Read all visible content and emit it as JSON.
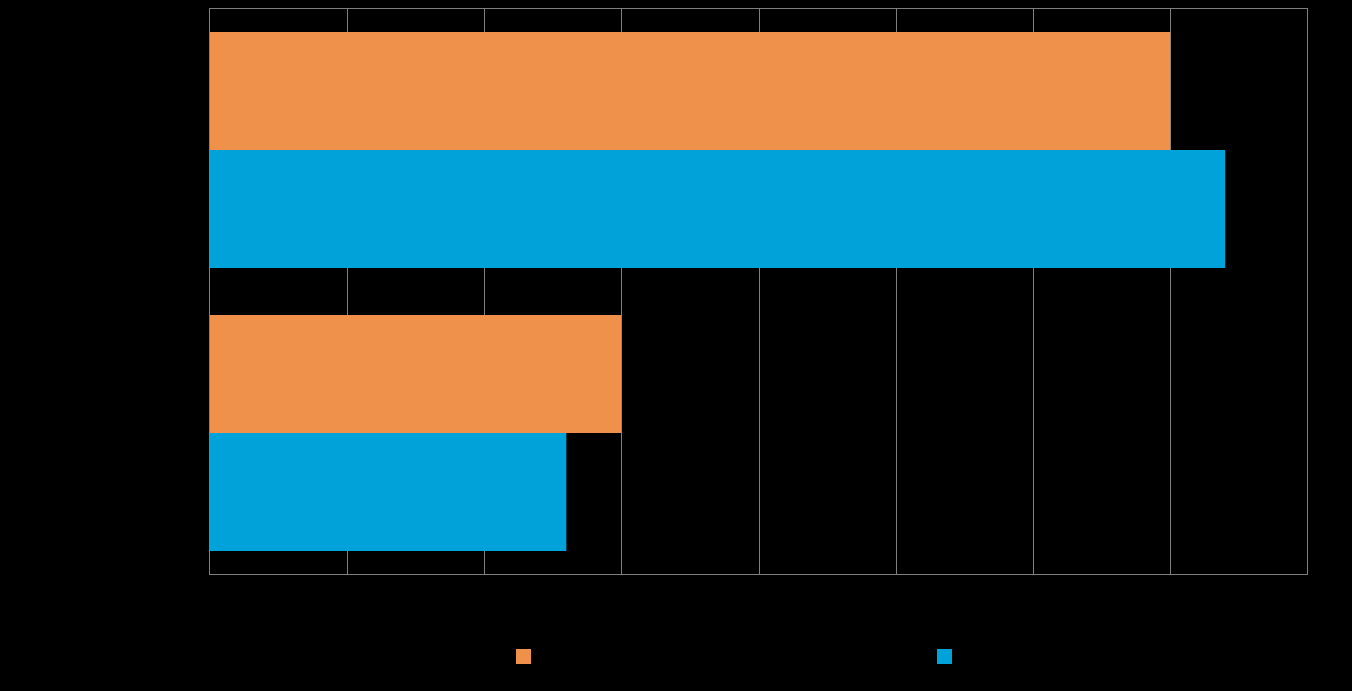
{
  "chart_data": {
    "type": "bar",
    "orientation": "horizontal",
    "title": "",
    "xlabel": "",
    "ylabel": "",
    "xlim": [
      0,
      8
    ],
    "major_step": 1,
    "grid": true,
    "legend_position": "bottom",
    "categories": [
      "",
      ""
    ],
    "series": [
      {
        "color": "#F0914B",
        "values": [
          7.0,
          3.0
        ]
      },
      {
        "color": "#00A3D9",
        "values": [
          7.4,
          2.6
        ]
      }
    ]
  },
  "colors": {
    "background": "#000000",
    "gridline": "#7F7F7F",
    "plot_border": "#7F7F7F"
  }
}
